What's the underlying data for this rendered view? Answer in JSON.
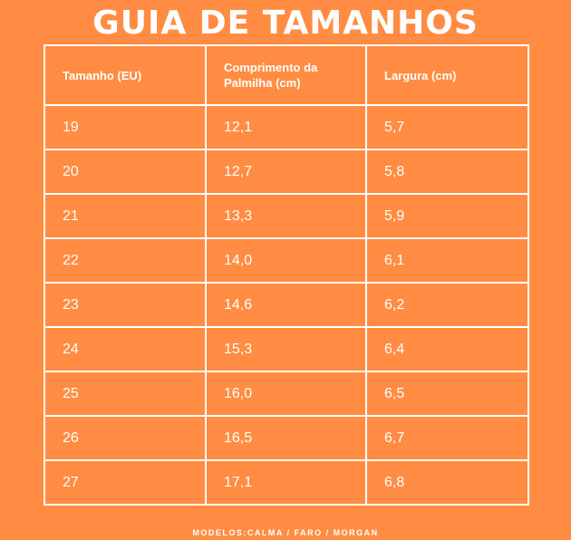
{
  "title": "GUIA DE TAMANHOS",
  "table": {
    "headers": [
      "Tamanho (EU)",
      "Comprimento da Palmilha (cm)",
      "Largura (cm)"
    ],
    "rows": [
      [
        "19",
        "12,1",
        "5,7"
      ],
      [
        "20",
        "12,7",
        "5,8"
      ],
      [
        "21",
        "13,3",
        "5,9"
      ],
      [
        "22",
        "14,0",
        "6,1"
      ],
      [
        "23",
        "14,6",
        "6,2"
      ],
      [
        "24",
        "15,3",
        "6,4"
      ],
      [
        "25",
        "16,0",
        "6,5"
      ],
      [
        "26",
        "16,5",
        "6,7"
      ],
      [
        "27",
        "17,1",
        "6,8"
      ]
    ]
  },
  "footer": "MODELOS:CALMA / FARO / MORGAN",
  "colors": {
    "background": "#FF8C42",
    "text": "#FFFFFF",
    "grid": "#FFFFFF"
  }
}
